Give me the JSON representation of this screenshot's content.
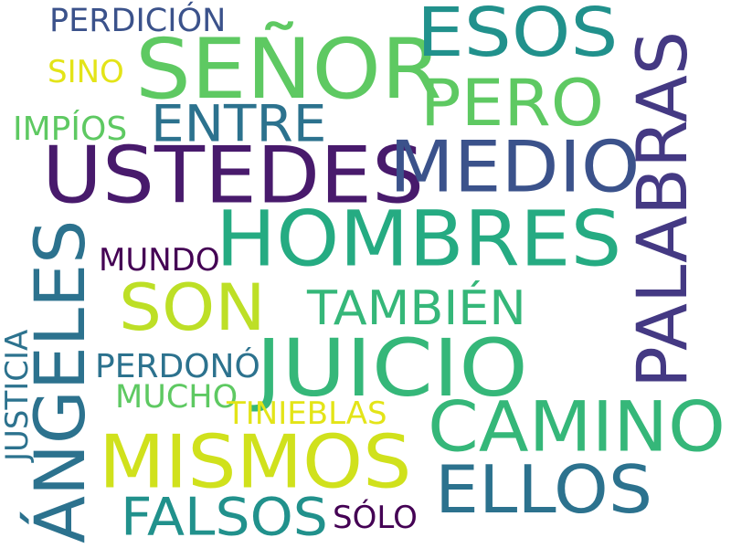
{
  "words": [
    {
      "id": "senor",
      "text": "SEÑOR",
      "color": "#5ec962",
      "rotated": false
    },
    {
      "id": "esos",
      "text": "ESOS",
      "color": "#21918c",
      "rotated": false
    },
    {
      "id": "palabras",
      "text": "PALABRAS",
      "color": "#443983",
      "rotated": true
    },
    {
      "id": "pero",
      "text": "PERO",
      "color": "#5ec962",
      "rotated": false
    },
    {
      "id": "perdicion",
      "text": "PERDICIÓN",
      "color": "#3b528b",
      "rotated": false
    },
    {
      "id": "sino",
      "text": "SINO",
      "color": "#e3e418",
      "rotated": false
    },
    {
      "id": "entre",
      "text": "ENTRE",
      "color": "#2c728e",
      "rotated": false
    },
    {
      "id": "impios",
      "text": "IMPÍOS",
      "color": "#5ec962",
      "rotated": false
    },
    {
      "id": "ustedes",
      "text": "USTEDES",
      "color": "#481a6c",
      "rotated": false
    },
    {
      "id": "medio",
      "text": "MEDIO",
      "color": "#3b528b",
      "rotated": false
    },
    {
      "id": "hombres",
      "text": "HOMBRES",
      "color": "#25ab82",
      "rotated": false
    },
    {
      "id": "angeles",
      "text": "ÁNGELES",
      "color": "#2c728e",
      "rotated": true
    },
    {
      "id": "mundo",
      "text": "MUNDO",
      "color": "#440154",
      "rotated": false
    },
    {
      "id": "son",
      "text": "SON",
      "color": "#bddf26",
      "rotated": false
    },
    {
      "id": "tambien",
      "text": "TAMBIÉN",
      "color": "#35b779",
      "rotated": false
    },
    {
      "id": "juicio",
      "text": "JUICIO",
      "color": "#35b779",
      "rotated": false
    },
    {
      "id": "justicia",
      "text": "JUSTICIA",
      "color": "#2c728e",
      "rotated": true
    },
    {
      "id": "perdono",
      "text": "PERDONÓ",
      "color": "#2c728e",
      "rotated": false
    },
    {
      "id": "mucho",
      "text": "MUCHO",
      "color": "#5ec962",
      "rotated": false
    },
    {
      "id": "tinieblas",
      "text": "TINIEBLAS",
      "color": "#e3e418",
      "rotated": false
    },
    {
      "id": "camino",
      "text": "CAMINO",
      "color": "#35b779",
      "rotated": false
    },
    {
      "id": "mismos",
      "text": "MISMOS",
      "color": "#d0e11c",
      "rotated": false
    },
    {
      "id": "ellos",
      "text": "ELLOS",
      "color": "#2c728e",
      "rotated": false
    },
    {
      "id": "falsos",
      "text": "FALSOS",
      "color": "#21918c",
      "rotated": false
    },
    {
      "id": "solo",
      "text": "SÓLO",
      "color": "#440154",
      "rotated": false
    }
  ]
}
